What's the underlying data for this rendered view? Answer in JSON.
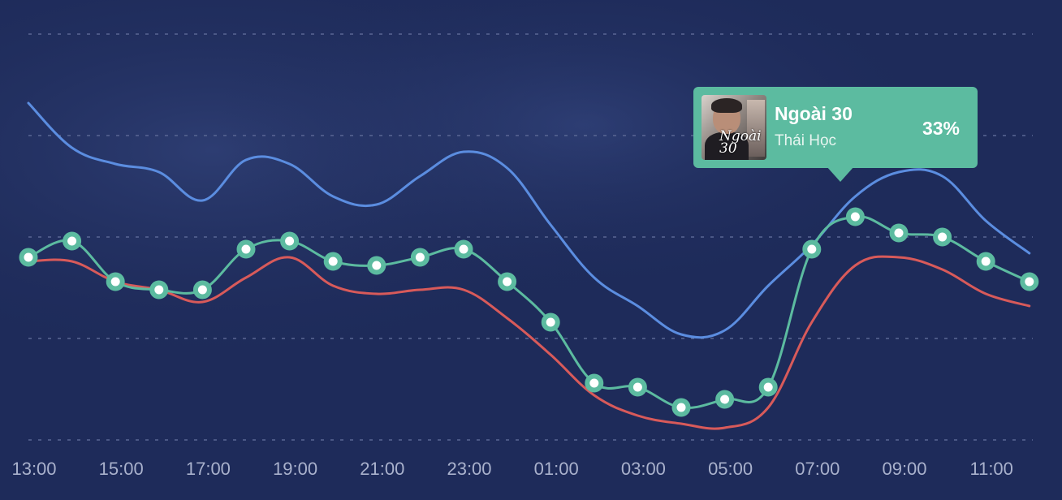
{
  "chart_data": {
    "type": "line",
    "x": [
      "13:00",
      "14:00",
      "15:00",
      "16:00",
      "17:00",
      "18:00",
      "19:00",
      "20:00",
      "21:00",
      "22:00",
      "23:00",
      "00:00",
      "01:00",
      "02:00",
      "03:00",
      "04:00",
      "05:00",
      "06:00",
      "07:00",
      "08:00",
      "09:00",
      "10:00",
      "11:00",
      "12:00"
    ],
    "x_tick_labels": [
      "13:00",
      "15:00",
      "17:00",
      "19:00",
      "21:00",
      "23:00",
      "01:00",
      "03:00",
      "05:00",
      "07:00",
      "09:00",
      "11:00"
    ],
    "ylim": [
      0,
      100
    ],
    "grid": true,
    "series": [
      {
        "color": "#5b8de0",
        "markers": false,
        "values": [
          83,
          72,
          68,
          66,
          59,
          69,
          68,
          60,
          58,
          65,
          71,
          67,
          53,
          40,
          33,
          26,
          27,
          38,
          48,
          60,
          66,
          65,
          54,
          46
        ]
      },
      {
        "color": "#5cbba0",
        "markers": true,
        "values": [
          45,
          49,
          39,
          37,
          37,
          47,
          49,
          44,
          43,
          45,
          47,
          39,
          29,
          14,
          13,
          8,
          10,
          13,
          47,
          55,
          51,
          50,
          44,
          39
        ]
      },
      {
        "color": "#d85a5a",
        "markers": false,
        "values": [
          44,
          44,
          39,
          37,
          34,
          40,
          45,
          38,
          36,
          37,
          37,
          30,
          21,
          11,
          6,
          4,
          3,
          8,
          29,
          43,
          45,
          42,
          36,
          33
        ]
      }
    ]
  },
  "tooltip": {
    "title": "Ngoài 30",
    "artist": "Thái Học",
    "percent": "33%",
    "cover_text": "Ngoài 30"
  }
}
